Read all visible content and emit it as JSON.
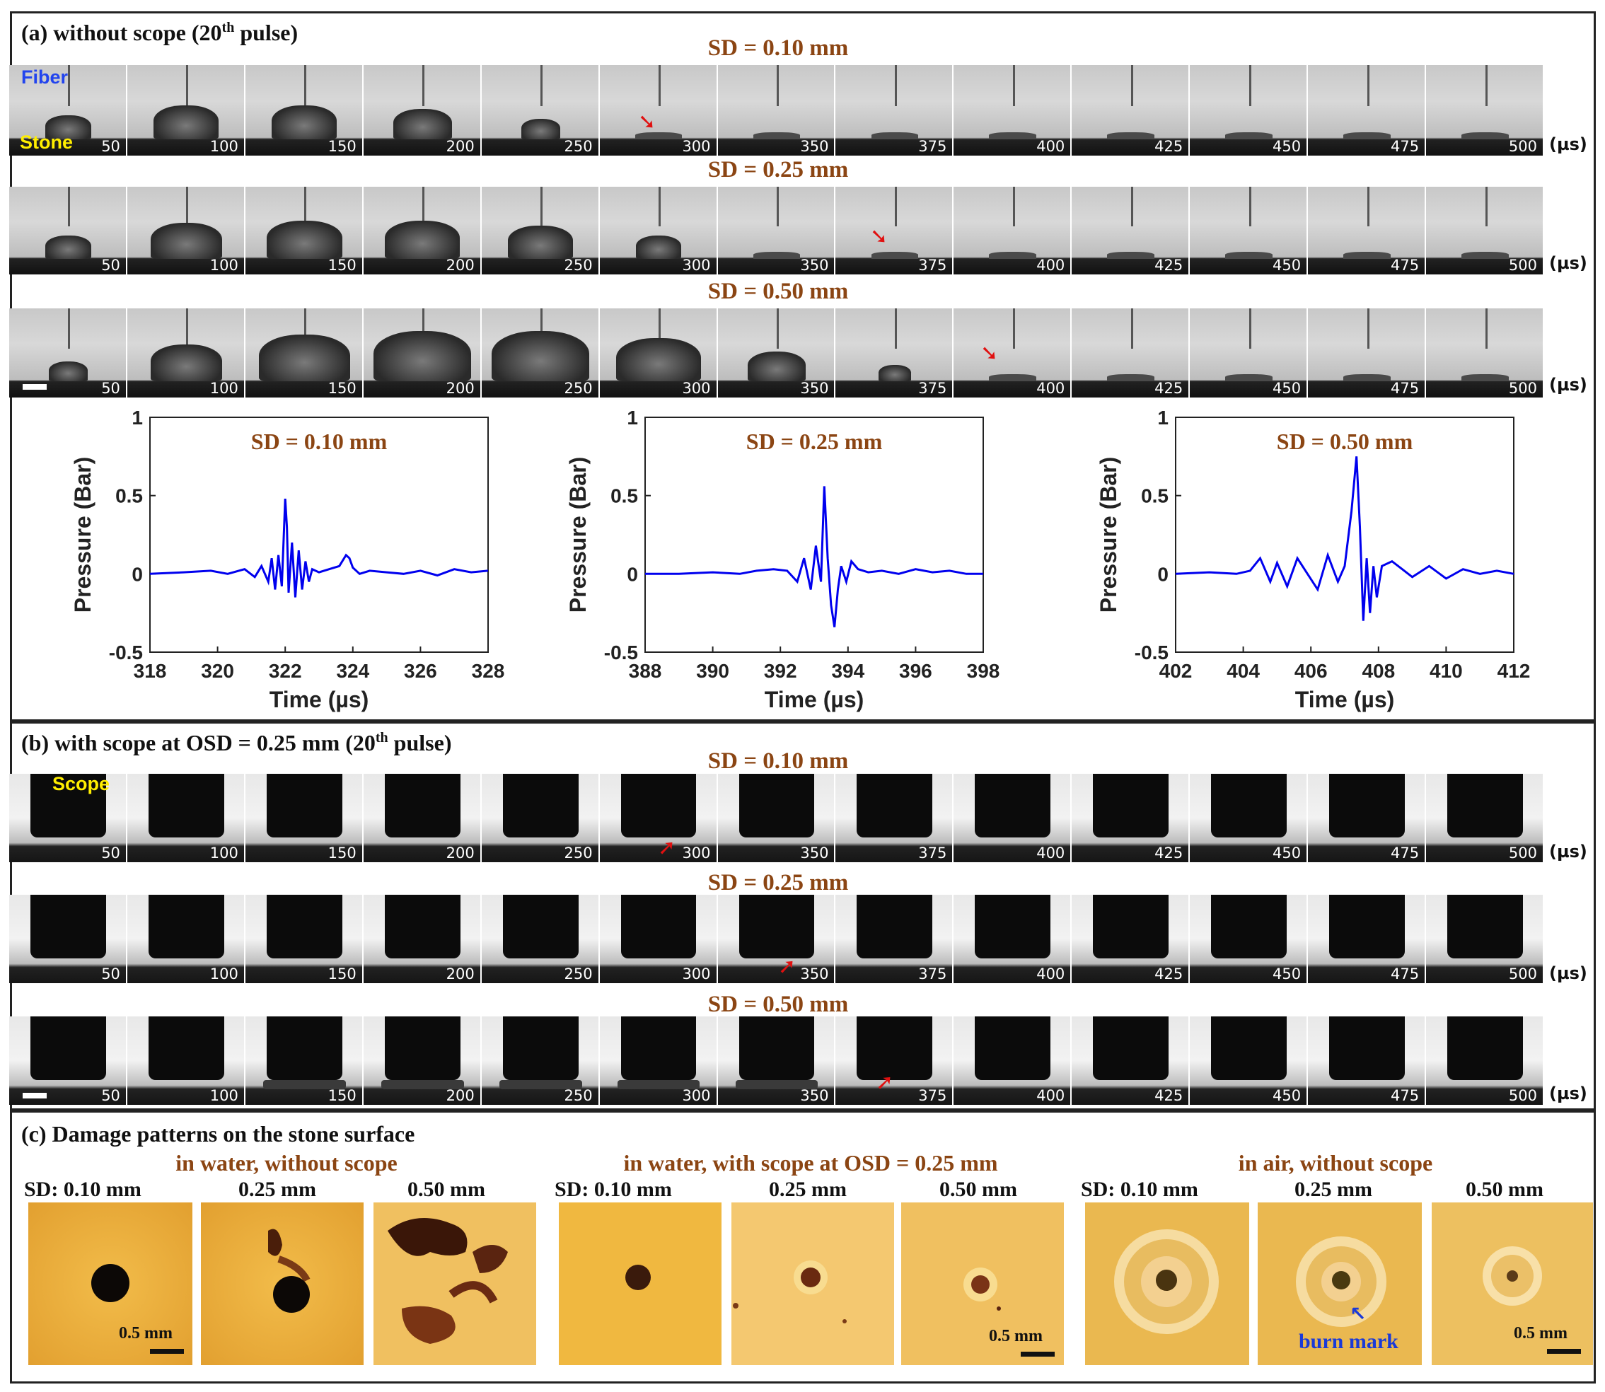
{
  "panel_a": {
    "title": "(a) without scope (20",
    "title_sup": "th",
    "title_end": " pulse)",
    "label_fiber": "Fiber",
    "label_stone": "Stone",
    "rows": [
      {
        "title": "SD = 0.10 mm"
      },
      {
        "title": "SD = 0.25 mm"
      },
      {
        "title": "SD = 0.50 mm"
      }
    ]
  },
  "panel_b": {
    "title": "(b) with scope at OSD = 0.25 mm (20",
    "title_sup": "th",
    "title_end": " pulse)",
    "label_scope": "Scope",
    "rows": [
      {
        "title": "SD = 0.10 mm"
      },
      {
        "title": "SD = 0.25 mm"
      },
      {
        "title": "SD = 0.50 mm"
      }
    ]
  },
  "time_labels": [
    "50",
    "100",
    "150",
    "200",
    "250",
    "300",
    "350",
    "375",
    "400",
    "425",
    "450",
    "475",
    "500"
  ],
  "time_unit": "(µs)",
  "colors": {
    "accent": "#8b4513",
    "trace": "#0000ee",
    "arrow": "#e01010",
    "fiber_label": "#2244ee",
    "stone_label": "#ffee00"
  },
  "chart_data": [
    {
      "type": "line",
      "title": "SD = 0.10 mm",
      "xlabel": "Time (µs)",
      "ylabel": "Pressure (Bar)",
      "xlim": [
        318,
        328
      ],
      "ylim": [
        -0.5,
        1
      ],
      "xticks": [
        "318",
        "320",
        "322",
        "324",
        "326",
        "328"
      ],
      "yticks": [
        "-0.5",
        "0",
        "0.5",
        "1"
      ],
      "series": [
        {
          "name": "pressure",
          "x": [
            318,
            319,
            319.8,
            320.3,
            320.8,
            321.1,
            321.3,
            321.5,
            321.6,
            321.7,
            321.8,
            321.9,
            322.0,
            322.05,
            322.1,
            322.2,
            322.3,
            322.4,
            322.5,
            322.6,
            322.7,
            322.8,
            323.0,
            323.3,
            323.6,
            323.8,
            323.9,
            324.0,
            324.2,
            324.5,
            325,
            325.5,
            326,
            326.5,
            327,
            327.5,
            328
          ],
          "y": [
            0,
            0.01,
            0.02,
            0.0,
            0.03,
            -0.02,
            0.05,
            -0.05,
            0.1,
            -0.1,
            0.12,
            -0.08,
            0.48,
            0.3,
            -0.12,
            0.2,
            -0.15,
            0.15,
            -0.1,
            0.08,
            -0.05,
            0.03,
            0.01,
            0.03,
            0.05,
            0.12,
            0.1,
            0.04,
            0.0,
            0.02,
            0.01,
            0.0,
            0.02,
            -0.01,
            0.03,
            0.01,
            0.02
          ]
        }
      ]
    },
    {
      "type": "line",
      "title": "SD = 0.25 mm",
      "xlabel": "Time (µs)",
      "ylabel": "Pressure (Bar)",
      "xlim": [
        388,
        398
      ],
      "ylim": [
        -0.5,
        1
      ],
      "xticks": [
        "388",
        "390",
        "392",
        "394",
        "396",
        "398"
      ],
      "yticks": [
        "-0.5",
        "0",
        "0.5",
        "1"
      ],
      "series": [
        {
          "name": "pressure",
          "x": [
            388,
            389,
            390,
            390.8,
            391.3,
            391.8,
            392.2,
            392.5,
            392.7,
            392.9,
            393.05,
            393.2,
            393.3,
            393.4,
            393.5,
            393.6,
            393.7,
            393.8,
            393.95,
            394.1,
            394.3,
            394.6,
            395,
            395.5,
            396,
            396.5,
            397,
            397.5,
            398
          ],
          "y": [
            0,
            0.0,
            0.01,
            0.0,
            0.02,
            0.03,
            0.02,
            -0.05,
            0.1,
            -0.1,
            0.18,
            -0.05,
            0.56,
            0.1,
            -0.2,
            -0.34,
            -0.1,
            0.05,
            -0.05,
            0.08,
            0.03,
            0.01,
            0.02,
            0.0,
            0.03,
            0.01,
            0.02,
            0.0,
            0.0
          ]
        }
      ]
    },
    {
      "type": "line",
      "title": "SD = 0.50 mm",
      "xlabel": "Time (µs)",
      "ylabel": "Pressure (Bar)",
      "xlim": [
        402,
        412
      ],
      "ylim": [
        -0.5,
        1
      ],
      "xticks": [
        "402",
        "404",
        "406",
        "408",
        "410",
        "412"
      ],
      "yticks": [
        "-0.5",
        "0",
        "0.5",
        "1"
      ],
      "series": [
        {
          "name": "pressure",
          "x": [
            402,
            403,
            403.8,
            404.2,
            404.5,
            404.8,
            405.0,
            405.3,
            405.6,
            405.9,
            406.2,
            406.5,
            406.8,
            407.0,
            407.2,
            407.35,
            407.45,
            407.55,
            407.65,
            407.75,
            407.85,
            407.95,
            408.1,
            408.4,
            408.7,
            409.0,
            409.5,
            410,
            410.5,
            411,
            411.5,
            412
          ],
          "y": [
            0,
            0.01,
            0.0,
            0.02,
            0.1,
            -0.05,
            0.07,
            -0.08,
            0.1,
            0.0,
            -0.1,
            0.12,
            -0.05,
            0.05,
            0.4,
            0.75,
            0.3,
            -0.3,
            0.1,
            -0.25,
            0.05,
            -0.15,
            0.05,
            0.08,
            0.03,
            -0.02,
            0.05,
            -0.03,
            0.03,
            0.0,
            0.02,
            0.0
          ]
        }
      ]
    }
  ],
  "panel_c": {
    "title": "(c) Damage patterns on the stone surface",
    "groups": [
      {
        "title": "in water, without scope",
        "sd_labels": [
          "SD: 0.10 mm",
          "0.25 mm",
          "0.50 mm"
        ],
        "scale_label": "0.5 mm"
      },
      {
        "title": "in water, with scope at OSD = 0.25 mm",
        "sd_labels": [
          "SD: 0.10 mm",
          "0.25 mm",
          "0.50 mm"
        ],
        "scale_label": "0.5 mm"
      },
      {
        "title": "in air, without scope",
        "sd_labels": [
          "SD: 0.10 mm",
          "0.25 mm",
          "0.50 mm"
        ],
        "scale_label": "0.5 mm",
        "annotation": "burn mark"
      }
    ]
  }
}
